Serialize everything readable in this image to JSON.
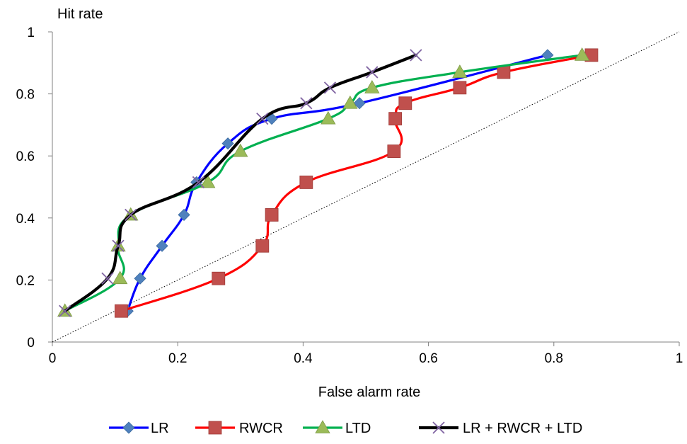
{
  "chart_data": {
    "type": "line",
    "title": "",
    "xlabel": "False alarm rate",
    "ylabel": "Hit rate",
    "xlim": [
      0,
      1
    ],
    "ylim": [
      0,
      1
    ],
    "xticks": [
      "0",
      "0.2",
      "0.4",
      "0.6",
      "0.8",
      "1"
    ],
    "yticks": [
      "0",
      "0.2",
      "0.4",
      "0.6",
      "0.8",
      "1"
    ],
    "grid": false,
    "legend_position": "bottom",
    "reference_line": {
      "x": [
        0,
        1
      ],
      "y": [
        0,
        1
      ],
      "style": "dotted"
    },
    "series": [
      {
        "name": "LR",
        "color": "#0000ff",
        "marker": "diamond",
        "marker_color": "#4f81bd",
        "x": [
          0.12,
          0.14,
          0.175,
          0.21,
          0.23,
          0.28,
          0.35,
          0.49,
          0.79
        ],
        "y": [
          0.1,
          0.205,
          0.31,
          0.41,
          0.515,
          0.64,
          0.72,
          0.77,
          0.925
        ]
      },
      {
        "name": "RWCR",
        "color": "#ff0000",
        "marker": "square",
        "marker_color": "#c0504d",
        "x": [
          0.11,
          0.265,
          0.335,
          0.35,
          0.405,
          0.545,
          0.547,
          0.563,
          0.65,
          0.72,
          0.86
        ],
        "y": [
          0.1,
          0.205,
          0.31,
          0.41,
          0.515,
          0.615,
          0.72,
          0.77,
          0.82,
          0.87,
          0.925
        ]
      },
      {
        "name": "LTD",
        "color": "#00b050",
        "marker": "triangle",
        "marker_color": "#9bbb59",
        "x": [
          0.02,
          0.108,
          0.105,
          0.125,
          0.248,
          0.3,
          0.44,
          0.475,
          0.51,
          0.65,
          0.845
        ],
        "y": [
          0.1,
          0.205,
          0.31,
          0.41,
          0.515,
          0.615,
          0.72,
          0.77,
          0.82,
          0.87,
          0.925
        ]
      },
      {
        "name": "LR + RWCR + LTD",
        "color": "#000000",
        "marker": "x",
        "marker_color": "#8064a2",
        "x": [
          0.02,
          0.088,
          0.105,
          0.125,
          0.233,
          0.335,
          0.405,
          0.443,
          0.51,
          0.58
        ],
        "y": [
          0.1,
          0.205,
          0.31,
          0.41,
          0.515,
          0.72,
          0.77,
          0.82,
          0.87,
          0.925
        ]
      }
    ]
  }
}
